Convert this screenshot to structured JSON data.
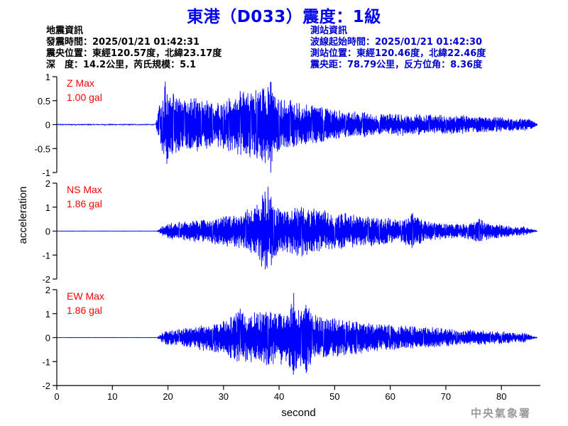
{
  "title": "東港（D033）震度：1級",
  "quake_info": {
    "heading": "地震資訊",
    "origin_time": "發震時間：2025/01/21 01:42:31",
    "epicenter": "震央位置：東經120.57度，北緯23.17度",
    "depth_magnitude": "深　度：14.2公里，芮氏規模：5.1"
  },
  "station_info": {
    "heading": "測站資訊",
    "wave_start": "波線起始時間：2025/01/21 01:42:30",
    "location": "測站位置：東經120.46度，北緯22.46度",
    "distance_azimuth": "震央距：78.79公里，反方位角：8.36度"
  },
  "watermark": "中央氣象署",
  "colors": {
    "trace": "#0000ff",
    "max_label": "#ff0000",
    "title": "#0000ee",
    "station_text": "#0000cc"
  },
  "chart_data": {
    "type": "line",
    "xlabel": "second",
    "ylabel": "acceleration",
    "xlim": [
      0,
      87
    ],
    "xticks": [
      0,
      10,
      20,
      30,
      40,
      50,
      60,
      70,
      80
    ],
    "grid": false,
    "panels": [
      {
        "component": "Z",
        "max_label": "Z Max",
        "max_value": "1.00 gal",
        "ylim": [
          -1,
          1
        ],
        "yticks": [
          1,
          0.5,
          0,
          -0.5,
          -1
        ],
        "ytick_labels": [
          "1",
          "0.5",
          "0",
          "-0.5",
          "-1"
        ],
        "series": [
          {
            "x": [
              0,
              17.8,
              18.5,
              19,
              19.5,
              20,
              21,
              22,
              23,
              24,
              25,
              26,
              27,
              28,
              29,
              30,
              31,
              32,
              33,
              34,
              35,
              36,
              37,
              37.5,
              38,
              38.5,
              39,
              40,
              42,
              44,
              46,
              48,
              50,
              52,
              55,
              58,
              61,
              64,
              67,
              70,
              73,
              76,
              79,
              82,
              85,
              86.5
            ],
            "y": [
              0,
              0.02,
              0.4,
              -0.55,
              0.9,
              -0.7,
              0.6,
              -0.55,
              0.5,
              -0.5,
              0.55,
              -0.45,
              0.5,
              -0.4,
              0.45,
              -0.5,
              0.55,
              -0.5,
              0.7,
              -0.6,
              0.65,
              -0.7,
              0.75,
              -0.8,
              0.78,
              -1.0,
              0.6,
              -0.5,
              0.5,
              -0.4,
              0.4,
              -0.35,
              0.3,
              -0.25,
              0.25,
              -0.2,
              0.22,
              -0.2,
              0.2,
              -0.18,
              0.18,
              -0.15,
              0.15,
              -0.12,
              0.12,
              0.02
            ]
          }
        ]
      },
      {
        "component": "NS",
        "max_label": "NS Max",
        "max_value": "1.86 gal",
        "ylim": [
          -2,
          2
        ],
        "yticks": [
          2,
          1,
          0,
          -1,
          -2
        ],
        "ytick_labels": [
          "2",
          "1",
          "0",
          "-1",
          "-2"
        ],
        "series": [
          {
            "x": [
              0,
              18,
              19,
              20,
              22,
              24,
              26,
              28,
              30,
              32,
              34,
              35,
              36,
              36.5,
              37,
              37.5,
              38,
              39,
              40,
              42,
              44,
              46,
              48,
              50,
              52,
              54,
              56,
              58,
              60,
              62,
              64,
              66,
              68,
              70,
              72,
              74,
              76,
              78,
              80,
              82,
              84,
              86.5
            ],
            "y": [
              0,
              0,
              0.2,
              -0.3,
              0.35,
              -0.4,
              0.45,
              -0.5,
              0.6,
              -0.65,
              0.8,
              -0.9,
              1.1,
              -1.2,
              1.5,
              -1.6,
              1.85,
              -1.0,
              0.9,
              -0.9,
              1.0,
              -0.85,
              0.8,
              -0.7,
              0.75,
              -0.6,
              0.6,
              -0.55,
              0.5,
              -0.45,
              0.75,
              -0.4,
              0.35,
              -0.3,
              0.3,
              -0.3,
              0.5,
              -0.3,
              0.25,
              -0.2,
              0.2,
              0
            ]
          }
        ]
      },
      {
        "component": "EW",
        "max_label": "EW Max",
        "max_value": "1.86 gal",
        "ylim": [
          -2,
          2
        ],
        "yticks": [
          2,
          1,
          0,
          -1,
          -2
        ],
        "ytick_labels": [
          "2",
          "1",
          "0",
          "-1",
          "-2"
        ],
        "series": [
          {
            "x": [
              0,
              18,
              19,
              20,
              22,
              24,
              26,
              28,
              30,
              32,
              33,
              34,
              36,
              38,
              40,
              42,
              42.6,
              43,
              44,
              45,
              46,
              48,
              50,
              52,
              54,
              56,
              58,
              60,
              62,
              64,
              66,
              68,
              70,
              72,
              74,
              76,
              78,
              80,
              82,
              84,
              86.5
            ],
            "y": [
              0,
              0,
              0.2,
              -0.3,
              0.35,
              -0.4,
              0.5,
              -0.55,
              0.7,
              -0.9,
              1.2,
              -1.0,
              1.0,
              -1.1,
              1.0,
              -1.2,
              1.86,
              -1.3,
              1.1,
              -1.4,
              0.9,
              -0.8,
              0.8,
              -0.7,
              0.65,
              -0.6,
              0.55,
              -0.5,
              0.5,
              -0.45,
              0.4,
              -0.4,
              0.35,
              -0.3,
              0.3,
              -0.3,
              0.25,
              -0.25,
              0.2,
              -0.2,
              0
            ]
          }
        ]
      }
    ]
  }
}
